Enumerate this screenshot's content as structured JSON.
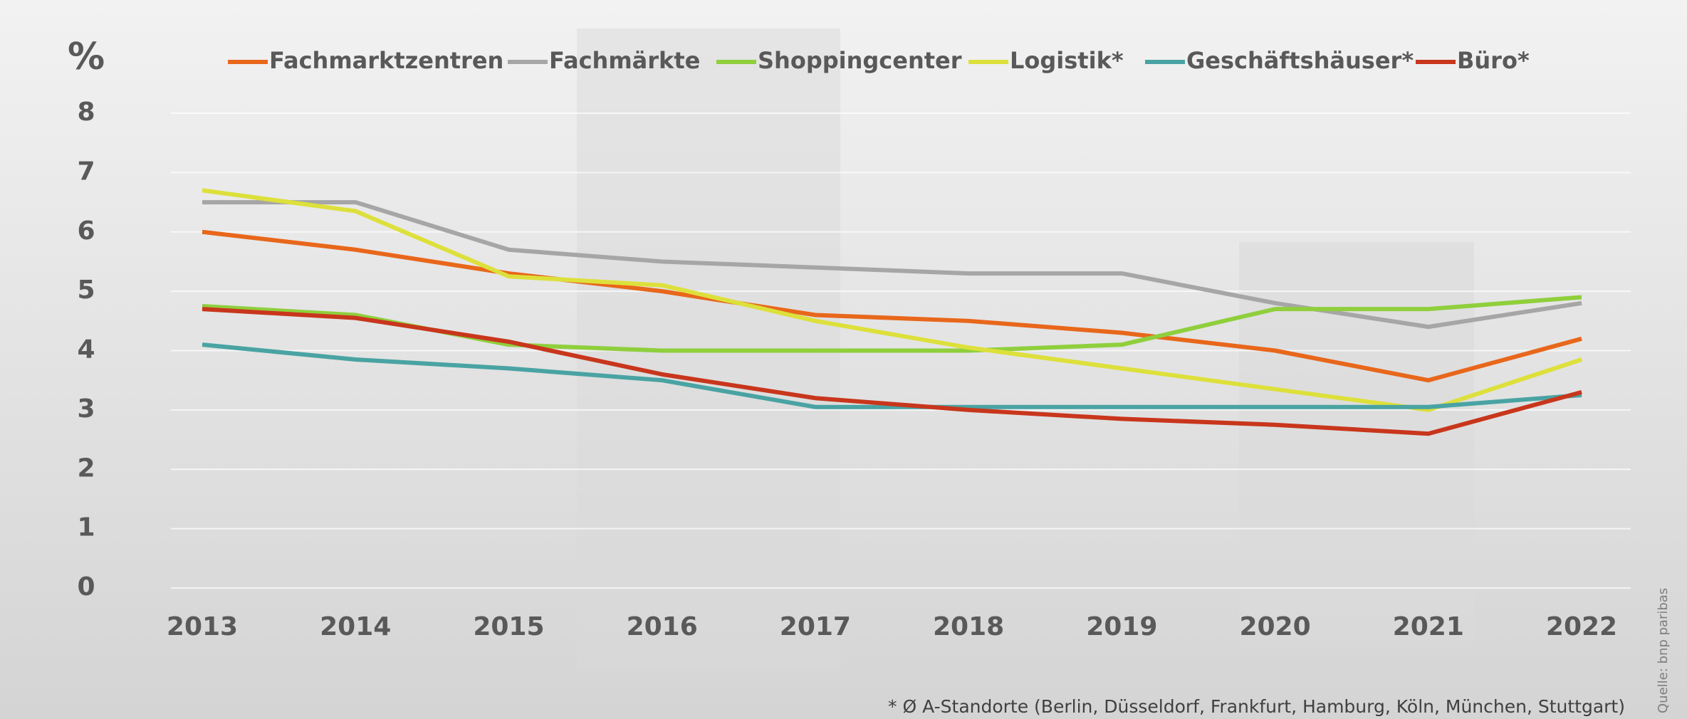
{
  "chart_data": {
    "type": "line",
    "unit_label": "%",
    "footnote": "* Ø A-Standorte (Berlin, Düsseldorf, Frankfurt, Hamburg, Köln, München, Stuttgart)",
    "source": "Quelle: bnp paribas",
    "categories": [
      "2013",
      "2014",
      "2015",
      "2016",
      "2017",
      "2018",
      "2019",
      "2020",
      "2021",
      "2022"
    ],
    "ylim": [
      0,
      8
    ],
    "yticks": [
      0,
      1,
      2,
      3,
      4,
      5,
      6,
      7,
      8
    ],
    "grid": true,
    "series": [
      {
        "name": "Fachmarktzentren",
        "color": "#e8671b",
        "values": [
          6.0,
          5.7,
          5.3,
          5.0,
          4.6,
          4.5,
          4.3,
          4.0,
          3.5,
          4.2
        ]
      },
      {
        "name": "Fachmärkte",
        "color": "#a6a6a6",
        "values": [
          6.5,
          6.5,
          5.7,
          5.5,
          5.4,
          5.3,
          5.3,
          4.8,
          4.4,
          4.8
        ]
      },
      {
        "name": "Shoppingcenter",
        "color": "#8fcf3c",
        "values": [
          4.75,
          4.6,
          4.1,
          4.0,
          4.0,
          4.0,
          4.1,
          4.7,
          4.7,
          4.9
        ]
      },
      {
        "name": "Logistik*",
        "color": "#dde03a",
        "values": [
          6.7,
          6.35,
          5.25,
          5.1,
          4.5,
          4.05,
          3.7,
          3.35,
          3.0,
          3.85
        ]
      },
      {
        "name": "Geschäftshäuser*",
        "color": "#4aa3a3",
        "values": [
          4.1,
          3.85,
          3.7,
          3.5,
          3.05,
          3.05,
          3.05,
          3.05,
          3.05,
          3.25
        ]
      },
      {
        "name": "Büro*",
        "color": "#c8361c",
        "values": [
          4.7,
          4.55,
          4.15,
          3.6,
          3.2,
          3.0,
          2.85,
          2.75,
          2.6,
          3.3
        ]
      }
    ]
  }
}
